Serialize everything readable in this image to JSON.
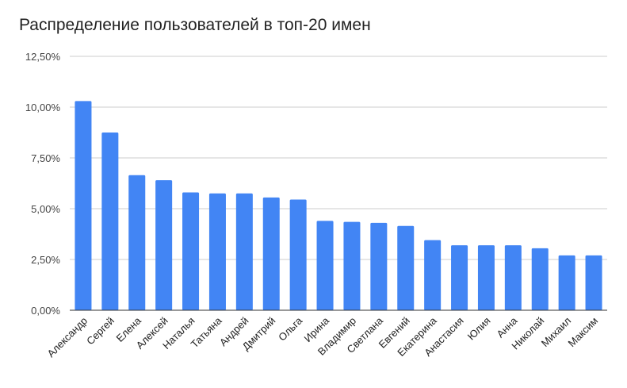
{
  "chart_data": {
    "type": "bar",
    "title": "Распределение пользователей в топ-20 имен",
    "xlabel": "",
    "ylabel": "",
    "ylim": [
      0,
      12.5
    ],
    "yticks": [
      "0,00%",
      "2,50%",
      "5,00%",
      "7,50%",
      "10,00%",
      "12,50%"
    ],
    "ytick_values": [
      0,
      2.5,
      5,
      7.5,
      10,
      12.5
    ],
    "grid": true,
    "bar_color": "#4285f4",
    "categories": [
      "Александр",
      "Сергей",
      "Елена",
      "Алексей",
      "Наталья",
      "Татьяна",
      "Андрей",
      "Дмитрий",
      "Ольга",
      "Ирина",
      "Владимир",
      "Светлана",
      "Евгений",
      "Екатерина",
      "Анастасия",
      "Юлия",
      "Анна",
      "Николай",
      "Михаил",
      "Максим"
    ],
    "values": [
      10.3,
      8.75,
      6.65,
      6.4,
      5.8,
      5.75,
      5.75,
      5.55,
      5.45,
      4.4,
      4.35,
      4.3,
      4.15,
      3.45,
      3.2,
      3.2,
      3.2,
      3.05,
      2.7,
      2.7
    ]
  }
}
